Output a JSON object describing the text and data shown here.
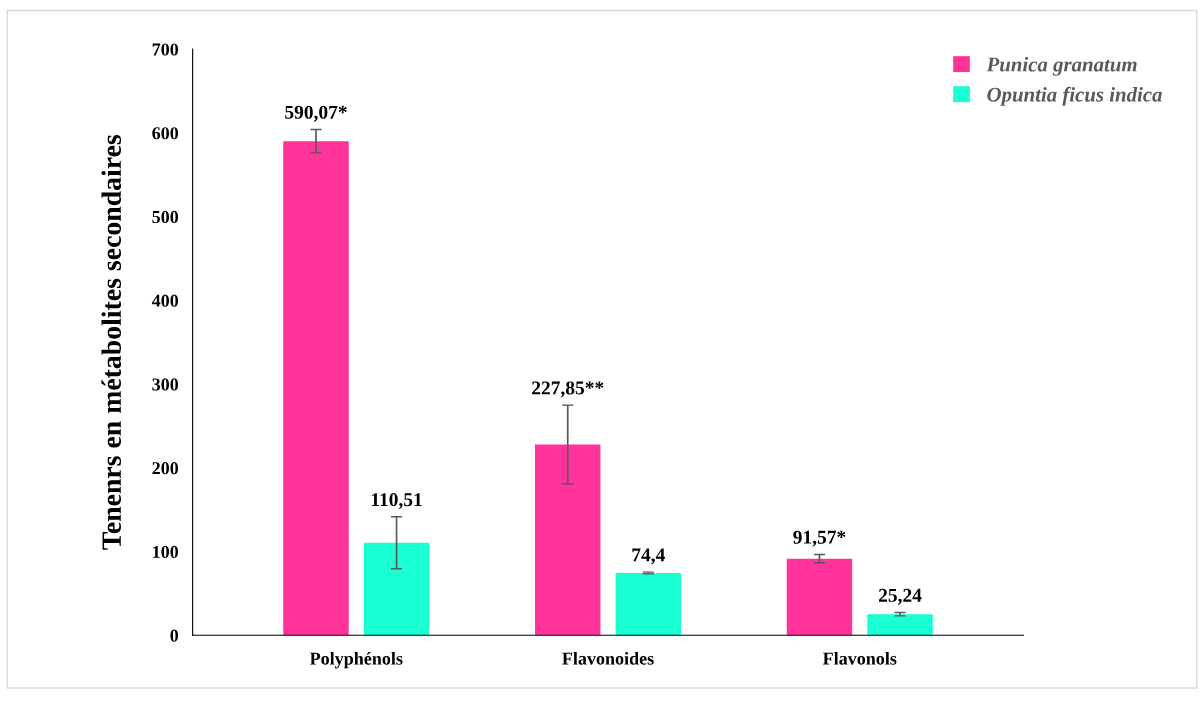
{
  "chart_data": {
    "type": "bar",
    "ylabel": "Tenenrs en métabolites secondaires",
    "categories": [
      "Polyphénols",
      "Flavonoides",
      "Flavonols"
    ],
    "series": [
      {
        "name": "Punica granatum",
        "color": "#ff3399",
        "values": [
          590.07,
          227.85,
          91.57
        ],
        "errors": [
          14,
          47,
          5
        ],
        "value_labels": [
          "590,07*",
          "227,85**",
          "91,57*"
        ]
      },
      {
        "name": "Opuntia ficus indica",
        "color": "#1affd1",
        "values": [
          110.51,
          74.4,
          25.24
        ],
        "errors": [
          31,
          1,
          2
        ],
        "value_labels": [
          "110,51",
          "74,4",
          "25,24"
        ]
      }
    ],
    "ylim": [
      0,
      700
    ],
    "yticks": [
      0,
      100,
      200,
      300,
      400,
      500,
      600,
      700
    ],
    "grid": false,
    "legend": "top right"
  }
}
